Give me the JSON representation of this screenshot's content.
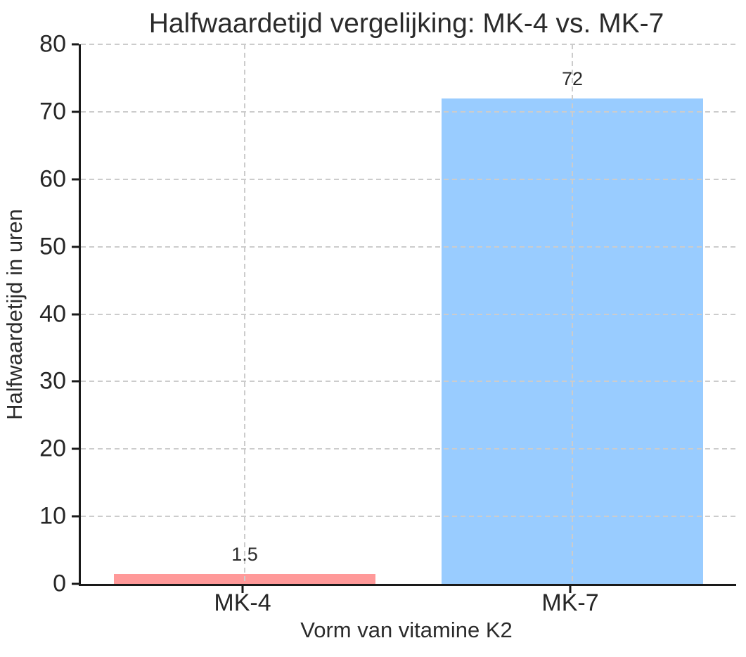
{
  "chart_data": {
    "type": "bar",
    "title": "Halfwaardetijd vergelijking: MK-4 vs. MK-7",
    "xlabel": "Vorm van vitamine K2",
    "ylabel": "Halfwaardetijd in uren",
    "categories": [
      "MK-4",
      "MK-7"
    ],
    "values": [
      1.5,
      72
    ],
    "value_labels": [
      "1.5",
      "72"
    ],
    "bar_colors": [
      "#ff9999",
      "#99ccff"
    ],
    "ylim": [
      0,
      80
    ],
    "yticks": [
      0,
      10,
      20,
      30,
      40,
      50,
      60,
      70,
      80
    ],
    "grid": {
      "style": "dashed",
      "axes": "both",
      "color": "#cccccc"
    },
    "legend": null,
    "colors": {
      "background": "#ffffff",
      "text": "#262626",
      "spine": "#1a1a1a",
      "grid": "#cccccc",
      "bar_mk4": "#ff9999",
      "bar_mk7": "#99ccff"
    }
  }
}
